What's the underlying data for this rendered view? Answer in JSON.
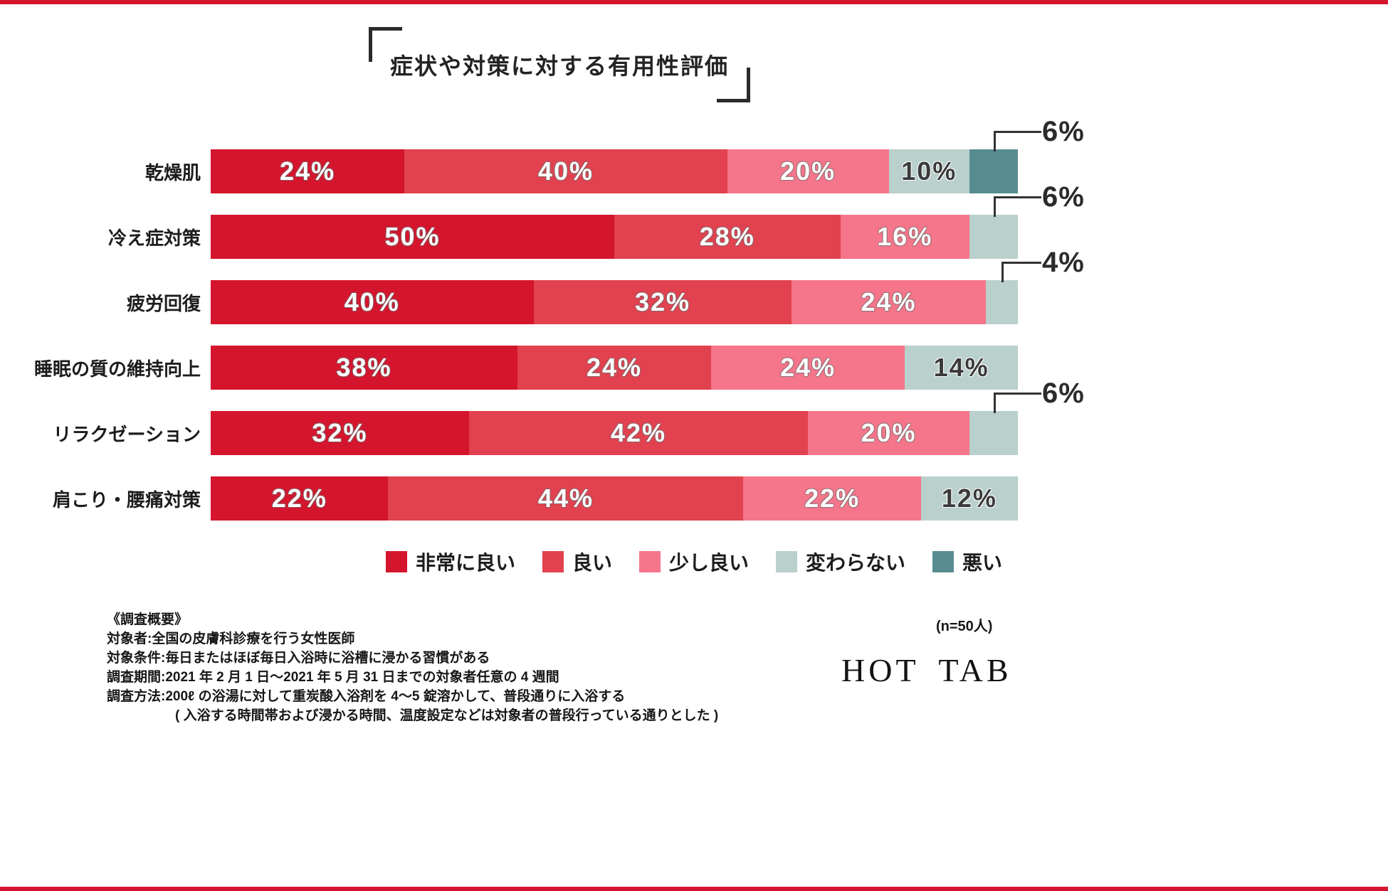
{
  "page": {
    "background": "#ffffff",
    "accent_red": "#d5152d",
    "text_color": "#1f1f1f"
  },
  "chart_data": {
    "type": "bar",
    "variant": "horizontal-stacked-percent",
    "title": "症状や対策に対する有用性評価",
    "unit": "%",
    "xlim": [
      0,
      100
    ],
    "grid": false,
    "legend_position": "bottom",
    "inside_label_min": 10,
    "categories": [
      "乾燥肌",
      "冷え症対策",
      "疲労回復",
      "睡眠の質の維持向上",
      "リラクゼーション",
      "肩こり・腰痛対策"
    ],
    "series": [
      {
        "name": "非常に良い",
        "color": "#d5152d",
        "label_style": "light",
        "values": [
          24,
          50,
          40,
          38,
          32,
          22
        ]
      },
      {
        "name": "良い",
        "color": "#e2414f",
        "label_style": "light",
        "values": [
          40,
          28,
          32,
          24,
          42,
          44
        ]
      },
      {
        "name": "少し良い",
        "color": "#f5758a",
        "label_style": "light",
        "values": [
          20,
          16,
          24,
          24,
          20,
          22
        ]
      },
      {
        "name": "変わらない",
        "color": "#bad0cd",
        "label_style": "dark",
        "values": [
          10,
          6,
          4,
          14,
          6,
          12
        ]
      },
      {
        "name": "悪い",
        "color": "#578d91",
        "label_style": "light",
        "values": [
          6,
          0,
          0,
          0,
          0,
          0
        ]
      }
    ],
    "callouts": [
      {
        "category": "乾燥肌",
        "series": "悪い",
        "label": "6%"
      },
      {
        "category": "冷え症対策",
        "series": "変わらない",
        "label": "6%"
      },
      {
        "category": "疲労回復",
        "series": "変わらない",
        "label": "4%"
      },
      {
        "category": "リラクゼーション",
        "series": "変わらない",
        "label": "6%"
      }
    ]
  },
  "survey": {
    "heading": "《調査概要》",
    "lines": [
      "対象者:全国の皮膚科診療を行う女性医師",
      "対象条件:毎日またはほぼ毎日入浴時に浴槽に浸かる習慣がある",
      "調査期間:2021 年 2 月 1 日〜2021 年 5 月 31 日までの対象者任意の 4 週間",
      "調査方法:200ℓ の浴湯に対して重炭酸入浴剤を 4〜5 錠溶かして、普段通りに入浴する",
      "( 入浴する時間帯および浸かる時間、温度設定などは対象者の普段行っている通りとした )"
    ],
    "n_label": "(n=50人)"
  },
  "brand": {
    "name": "HOT TAB"
  }
}
